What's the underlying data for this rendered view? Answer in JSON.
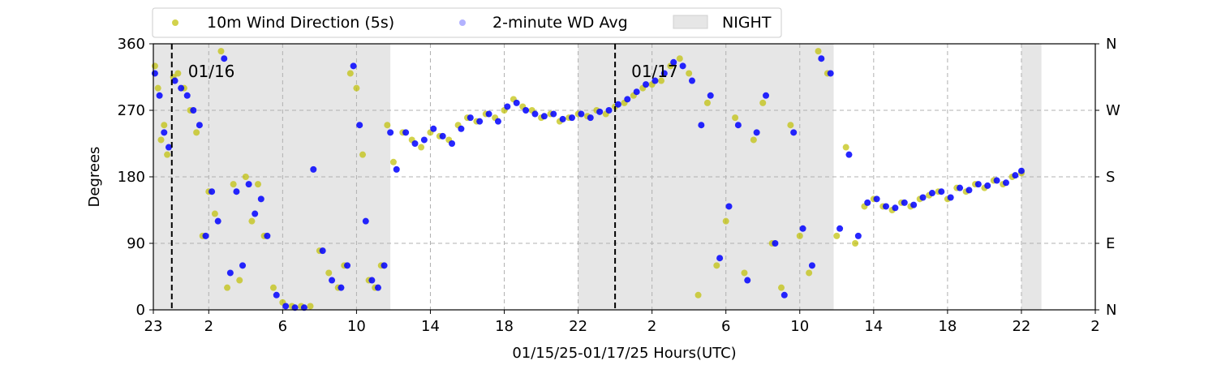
{
  "chart_data": {
    "type": "scatter",
    "xlabel": "01/15/25-01/17/25  Hours(UTC)",
    "ylabel": "Degrees",
    "xlim": [
      "01/15 23:00",
      "01/18 02:00"
    ],
    "ylim": [
      0,
      360
    ],
    "x_ticks": [
      {
        "t": "01/15 23:00",
        "label": "23"
      },
      {
        "t": "01/16 02:00",
        "label": "2"
      },
      {
        "t": "01/16 06:00",
        "label": "6"
      },
      {
        "t": "01/16 10:00",
        "label": "10"
      },
      {
        "t": "01/16 14:00",
        "label": "14"
      },
      {
        "t": "01/16 18:00",
        "label": "18"
      },
      {
        "t": "01/16 22:00",
        "label": "22"
      },
      {
        "t": "01/17 02:00",
        "label": "2"
      },
      {
        "t": "01/17 06:00",
        "label": "6"
      },
      {
        "t": "01/17 10:00",
        "label": "10"
      },
      {
        "t": "01/17 14:00",
        "label": "14"
      },
      {
        "t": "01/17 18:00",
        "label": "18"
      },
      {
        "t": "01/17 22:00",
        "label": "22"
      },
      {
        "t": "01/18 02:00",
        "label": "2"
      }
    ],
    "y_ticks": [
      0,
      90,
      180,
      270,
      360
    ],
    "y_right_ticks": [
      {
        "value": 0,
        "label": "N"
      },
      {
        "value": 90,
        "label": "E"
      },
      {
        "value": 180,
        "label": "S"
      },
      {
        "value": 270,
        "label": "W"
      },
      {
        "value": 360,
        "label": "N"
      }
    ],
    "grid": true,
    "legend_position": "top-left, above plot",
    "day_markers": [
      {
        "t": "01/16 00:00",
        "label": "01/16"
      },
      {
        "t": "01/17 00:00",
        "label": "01/17"
      }
    ],
    "night_periods": [
      [
        "01/15 23:00",
        "01/16 11:50"
      ],
      [
        "01/16 22:00",
        "01/17 11:50"
      ],
      [
        "01/17 22:00",
        "01/17 23:05"
      ]
    ],
    "series": [
      {
        "name": "10m Wind Direction (5s)",
        "color": "#bfbf00",
        "marker": "dot",
        "points": [
          [
            "01/15 23:05",
            330
          ],
          [
            "01/15 23:15",
            300
          ],
          [
            "01/15 23:25",
            230
          ],
          [
            "01/15 23:35",
            250
          ],
          [
            "01/15 23:45",
            210
          ],
          [
            "01/16 00:05",
            315
          ],
          [
            "01/16 00:20",
            320
          ],
          [
            "01/16 00:40",
            300
          ],
          [
            "01/16 01:00",
            270
          ],
          [
            "01/16 01:20",
            240
          ],
          [
            "01/16 01:40",
            100
          ],
          [
            "01/16 02:00",
            160
          ],
          [
            "01/16 02:20",
            130
          ],
          [
            "01/16 02:40",
            350
          ],
          [
            "01/16 03:00",
            30
          ],
          [
            "01/16 03:20",
            170
          ],
          [
            "01/16 03:40",
            40
          ],
          [
            "01/16 04:00",
            180
          ],
          [
            "01/16 04:20",
            120
          ],
          [
            "01/16 04:40",
            170
          ],
          [
            "01/16 05:00",
            100
          ],
          [
            "01/16 05:30",
            30
          ],
          [
            "01/16 06:00",
            10
          ],
          [
            "01/16 06:30",
            5
          ],
          [
            "01/16 07:00",
            5
          ],
          [
            "01/16 07:30",
            5
          ],
          [
            "01/16 08:00",
            80
          ],
          [
            "01/16 08:30",
            50
          ],
          [
            "01/16 09:00",
            30
          ],
          [
            "01/16 09:20",
            60
          ],
          [
            "01/16 09:40",
            320
          ],
          [
            "01/16 10:00",
            300
          ],
          [
            "01/16 10:20",
            210
          ],
          [
            "01/16 10:40",
            40
          ],
          [
            "01/16 11:00",
            30
          ],
          [
            "01/16 11:20",
            60
          ],
          [
            "01/16 11:40",
            250
          ],
          [
            "01/16 12:00",
            200
          ],
          [
            "01/16 12:30",
            240
          ],
          [
            "01/16 13:00",
            230
          ],
          [
            "01/16 13:30",
            220
          ],
          [
            "01/16 14:00",
            240
          ],
          [
            "01/16 14:30",
            235
          ],
          [
            "01/16 15:00",
            230
          ],
          [
            "01/16 15:30",
            250
          ],
          [
            "01/16 16:00",
            260
          ],
          [
            "01/16 16:30",
            255
          ],
          [
            "01/16 17:00",
            265
          ],
          [
            "01/16 17:30",
            260
          ],
          [
            "01/16 18:00",
            270
          ],
          [
            "01/16 18:30",
            285
          ],
          [
            "01/16 19:00",
            275
          ],
          [
            "01/16 19:30",
            270
          ],
          [
            "01/16 20:00",
            260
          ],
          [
            "01/16 20:30",
            265
          ],
          [
            "01/16 21:00",
            255
          ],
          [
            "01/16 21:30",
            260
          ],
          [
            "01/16 22:00",
            265
          ],
          [
            "01/16 22:30",
            262
          ],
          [
            "01/16 23:00",
            270
          ],
          [
            "01/16 23:30",
            265
          ],
          [
            "01/17 00:00",
            275
          ],
          [
            "01/17 00:30",
            280
          ],
          [
            "01/17 01:00",
            290
          ],
          [
            "01/17 01:30",
            300
          ],
          [
            "01/17 02:00",
            305
          ],
          [
            "01/17 02:30",
            310
          ],
          [
            "01/17 03:00",
            330
          ],
          [
            "01/17 03:30",
            340
          ],
          [
            "01/17 04:00",
            320
          ],
          [
            "01/17 04:30",
            20
          ],
          [
            "01/17 05:00",
            280
          ],
          [
            "01/17 05:30",
            60
          ],
          [
            "01/17 06:00",
            120
          ],
          [
            "01/17 06:30",
            260
          ],
          [
            "01/17 07:00",
            50
          ],
          [
            "01/17 07:30",
            230
          ],
          [
            "01/17 08:00",
            280
          ],
          [
            "01/17 08:30",
            90
          ],
          [
            "01/17 09:00",
            30
          ],
          [
            "01/17 09:30",
            250
          ],
          [
            "01/17 10:00",
            100
          ],
          [
            "01/17 10:30",
            50
          ],
          [
            "01/17 11:00",
            350
          ],
          [
            "01/17 11:30",
            320
          ],
          [
            "01/17 12:00",
            100
          ],
          [
            "01/17 12:30",
            220
          ],
          [
            "01/17 13:00",
            90
          ],
          [
            "01/17 13:30",
            140
          ],
          [
            "01/17 14:00",
            150
          ],
          [
            "01/17 14:30",
            140
          ],
          [
            "01/17 15:00",
            135
          ],
          [
            "01/17 15:30",
            145
          ],
          [
            "01/17 16:00",
            140
          ],
          [
            "01/17 16:30",
            150
          ],
          [
            "01/17 17:00",
            155
          ],
          [
            "01/17 17:30",
            160
          ],
          [
            "01/17 18:00",
            150
          ],
          [
            "01/17 18:30",
            165
          ],
          [
            "01/17 19:00",
            160
          ],
          [
            "01/17 19:30",
            170
          ],
          [
            "01/17 20:00",
            165
          ],
          [
            "01/17 20:30",
            175
          ],
          [
            "01/17 21:00",
            170
          ],
          [
            "01/17 21:30",
            180
          ],
          [
            "01/17 22:00",
            185
          ]
        ]
      },
      {
        "name": "2-minute WD Avg",
        "color": "#0000ff",
        "marker": "dot",
        "points": [
          [
            "01/15 23:05",
            320
          ],
          [
            "01/15 23:20",
            290
          ],
          [
            "01/15 23:35",
            240
          ],
          [
            "01/15 23:50",
            220
          ],
          [
            "01/16 00:10",
            310
          ],
          [
            "01/16 00:30",
            300
          ],
          [
            "01/16 00:50",
            290
          ],
          [
            "01/16 01:10",
            270
          ],
          [
            "01/16 01:30",
            250
          ],
          [
            "01/16 01:50",
            100
          ],
          [
            "01/16 02:10",
            160
          ],
          [
            "01/16 02:30",
            120
          ],
          [
            "01/16 02:50",
            340
          ],
          [
            "01/16 03:10",
            50
          ],
          [
            "01/16 03:30",
            160
          ],
          [
            "01/16 03:50",
            60
          ],
          [
            "01/16 04:10",
            170
          ],
          [
            "01/16 04:30",
            130
          ],
          [
            "01/16 04:50",
            150
          ],
          [
            "01/16 05:10",
            100
          ],
          [
            "01/16 05:40",
            20
          ],
          [
            "01/16 06:10",
            5
          ],
          [
            "01/16 06:40",
            3
          ],
          [
            "01/16 07:10",
            3
          ],
          [
            "01/16 07:40",
            190
          ],
          [
            "01/16 08:10",
            80
          ],
          [
            "01/16 08:40",
            40
          ],
          [
            "01/16 09:10",
            30
          ],
          [
            "01/16 09:30",
            60
          ],
          [
            "01/16 09:50",
            330
          ],
          [
            "01/16 10:10",
            250
          ],
          [
            "01/16 10:30",
            120
          ],
          [
            "01/16 10:50",
            40
          ],
          [
            "01/16 11:10",
            30
          ],
          [
            "01/16 11:30",
            60
          ],
          [
            "01/16 11:50",
            240
          ],
          [
            "01/16 12:10",
            190
          ],
          [
            "01/16 12:40",
            240
          ],
          [
            "01/16 13:10",
            225
          ],
          [
            "01/16 13:40",
            230
          ],
          [
            "01/16 14:10",
            245
          ],
          [
            "01/16 14:40",
            235
          ],
          [
            "01/16 15:10",
            225
          ],
          [
            "01/16 15:40",
            245
          ],
          [
            "01/16 16:10",
            260
          ],
          [
            "01/16 16:40",
            255
          ],
          [
            "01/16 17:10",
            265
          ],
          [
            "01/16 17:40",
            255
          ],
          [
            "01/16 18:10",
            275
          ],
          [
            "01/16 18:40",
            280
          ],
          [
            "01/16 19:10",
            270
          ],
          [
            "01/16 19:40",
            265
          ],
          [
            "01/16 20:10",
            262
          ],
          [
            "01/16 20:40",
            265
          ],
          [
            "01/16 21:10",
            258
          ],
          [
            "01/16 21:40",
            260
          ],
          [
            "01/16 22:10",
            265
          ],
          [
            "01/16 22:40",
            260
          ],
          [
            "01/16 23:10",
            268
          ],
          [
            "01/16 23:40",
            270
          ],
          [
            "01/17 00:10",
            278
          ],
          [
            "01/17 00:40",
            285
          ],
          [
            "01/17 01:10",
            295
          ],
          [
            "01/17 01:40",
            305
          ],
          [
            "01/17 02:10",
            310
          ],
          [
            "01/17 02:40",
            320
          ],
          [
            "01/17 03:10",
            335
          ],
          [
            "01/17 03:40",
            330
          ],
          [
            "01/17 04:10",
            310
          ],
          [
            "01/17 04:40",
            250
          ],
          [
            "01/17 05:10",
            290
          ],
          [
            "01/17 05:40",
            70
          ],
          [
            "01/17 06:10",
            140
          ],
          [
            "01/17 06:40",
            250
          ],
          [
            "01/17 07:10",
            40
          ],
          [
            "01/17 07:40",
            240
          ],
          [
            "01/17 08:10",
            290
          ],
          [
            "01/17 08:40",
            90
          ],
          [
            "01/17 09:10",
            20
          ],
          [
            "01/17 09:40",
            240
          ],
          [
            "01/17 10:10",
            110
          ],
          [
            "01/17 10:40",
            60
          ],
          [
            "01/17 11:10",
            340
          ],
          [
            "01/17 11:40",
            320
          ],
          [
            "01/17 12:10",
            110
          ],
          [
            "01/17 12:40",
            210
          ],
          [
            "01/17 13:10",
            100
          ],
          [
            "01/17 13:40",
            145
          ],
          [
            "01/17 14:10",
            150
          ],
          [
            "01/17 14:40",
            140
          ],
          [
            "01/17 15:10",
            138
          ],
          [
            "01/17 15:40",
            145
          ],
          [
            "01/17 16:10",
            142
          ],
          [
            "01/17 16:40",
            152
          ],
          [
            "01/17 17:10",
            158
          ],
          [
            "01/17 17:40",
            160
          ],
          [
            "01/17 18:10",
            152
          ],
          [
            "01/17 18:40",
            165
          ],
          [
            "01/17 19:10",
            162
          ],
          [
            "01/17 19:40",
            170
          ],
          [
            "01/17 20:10",
            168
          ],
          [
            "01/17 20:40",
            175
          ],
          [
            "01/17 21:10",
            172
          ],
          [
            "01/17 21:40",
            182
          ],
          [
            "01/17 22:00",
            188
          ]
        ]
      }
    ],
    "legend": [
      {
        "label": "10m Wind Direction (5s)",
        "color": "#bfbf00",
        "kind": "marker"
      },
      {
        "label": "2-minute WD Avg",
        "color": "#0000ff",
        "kind": "marker-faded"
      },
      {
        "label": "NIGHT",
        "color": "#e6e6e6",
        "kind": "patch"
      }
    ]
  }
}
